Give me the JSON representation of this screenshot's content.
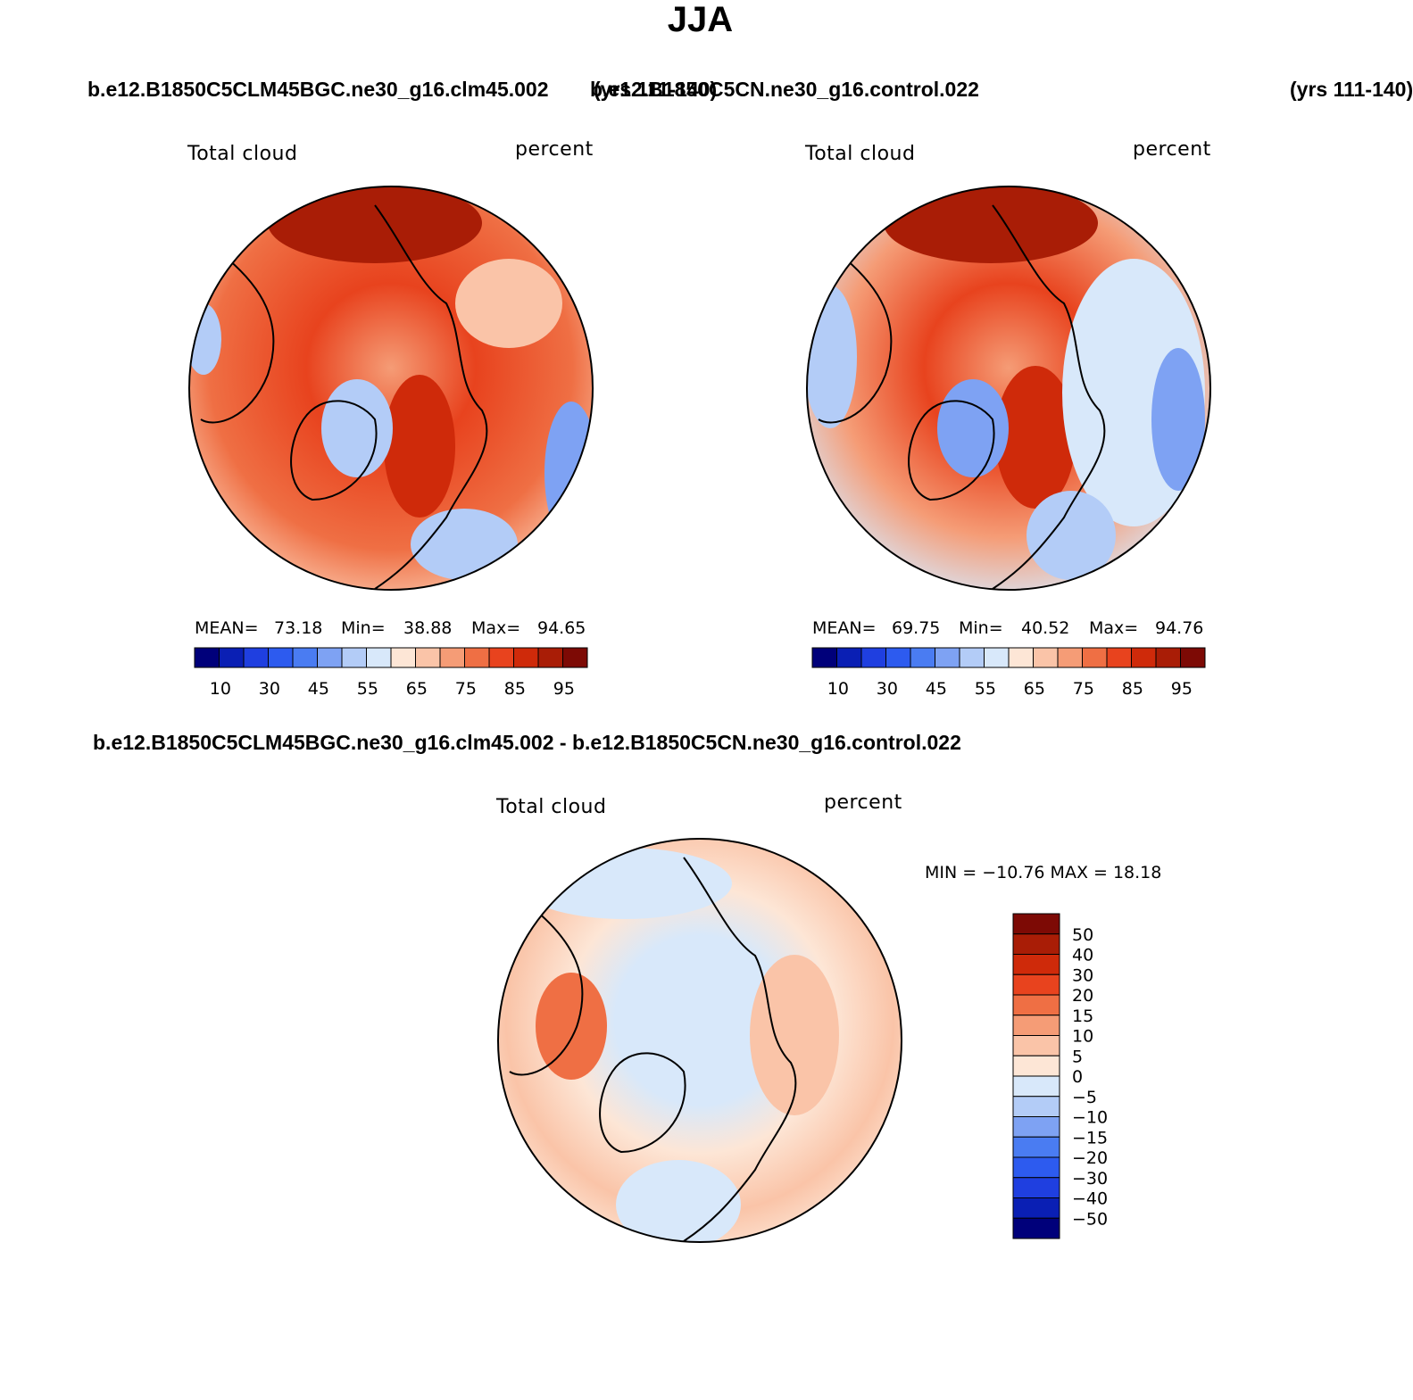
{
  "title": "JJA",
  "panels": [
    {
      "case_name": "b.e12.B1850C5CLM45BGC.ne30_g16.clm45.002",
      "years": "(yrs 111-140)",
      "variable": "Total cloud",
      "units": "percent",
      "stats": {
        "mean_label": "MEAN=",
        "mean": "73.18",
        "min_label": "Min=",
        "min": "38.88",
        "max_label": "Max=",
        "max": "94.65"
      },
      "colorbar_labels": [
        "10",
        "30",
        "45",
        "55",
        "65",
        "75",
        "85",
        "95"
      ]
    },
    {
      "case_name": "b.e12.B1850C5CN.ne30_g16.control.022",
      "years": "(yrs 111-140)",
      "variable": "Total cloud",
      "units": "percent",
      "stats": {
        "mean_label": "MEAN=",
        "mean": "69.75",
        "min_label": "Min=",
        "min": "40.52",
        "max_label": "Max=",
        "max": "94.76"
      },
      "colorbar_labels": [
        "10",
        "30",
        "45",
        "55",
        "65",
        "75",
        "85",
        "95"
      ]
    }
  ],
  "difference": {
    "title": "b.e12.B1850C5CLM45BGC.ne30_g16.clm45.002 - b.e12.B1850C5CN.ne30_g16.control.022",
    "variable": "Total cloud",
    "units": "percent",
    "min_max": "MIN = −10.76 MAX =   18.18",
    "colorbar_labels": [
      "50",
      "40",
      "30",
      "20",
      "15",
      "10",
      "5",
      "0",
      "−5",
      "−10",
      "−15",
      "−20",
      "−30",
      "−40",
      "−50"
    ]
  },
  "colors": {
    "abs_scale": [
      "#00007a",
      "#0a1fb4",
      "#1f3fe0",
      "#2d5bef",
      "#4a7cf2",
      "#7ea2f3",
      "#b3ccf7",
      "#d8e8fa",
      "#fde6d6",
      "#fac4a8",
      "#f59c76",
      "#ef6f44",
      "#e8431e",
      "#cf2a0a",
      "#a91d06",
      "#7d0a05"
    ],
    "diff_scale": [
      "#7d0a05",
      "#a91d06",
      "#cf2a0a",
      "#e8431e",
      "#ef6f44",
      "#f59c76",
      "#fac4a8",
      "#fde6d6",
      "#d8e8fa",
      "#b3ccf7",
      "#7ea2f3",
      "#4a7cf2",
      "#2d5bef",
      "#1f3fe0",
      "#0a1fb4",
      "#00007a"
    ]
  }
}
